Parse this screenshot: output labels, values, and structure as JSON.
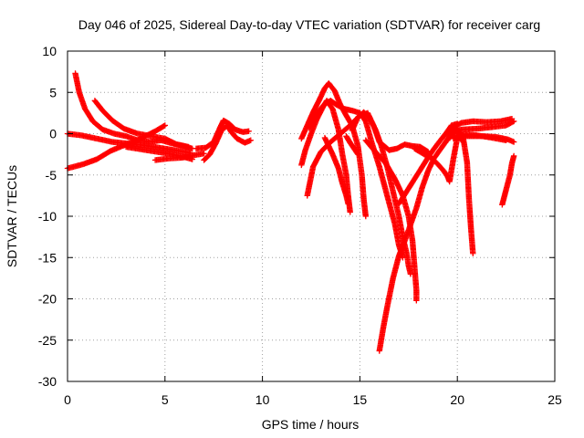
{
  "chart_data": {
    "type": "scatter",
    "title": "Day 046 of 2025, Sidereal Day-to-day VTEC variation (SDTVAR) for receiver carg",
    "xlabel": "GPS time / hours",
    "ylabel": "SDTVAR / TECUs",
    "xlim": [
      0,
      25
    ],
    "ylim": [
      -30,
      10
    ],
    "xticks": [
      "0",
      "5",
      "10",
      "15",
      "20",
      "25"
    ],
    "yticks": [
      "10",
      "5",
      "0",
      "-5",
      "-10",
      "-15",
      "-20",
      "-25",
      "-30"
    ],
    "xtick_values": [
      0,
      5,
      10,
      15,
      20,
      25
    ],
    "ytick_values": [
      10,
      5,
      0,
      -5,
      -10,
      -15,
      -20,
      -25,
      -30
    ],
    "grid": true,
    "marker": "+",
    "color": "#ff0000",
    "series": [
      {
        "name": "s1",
        "points": [
          [
            0.4,
            7.3
          ],
          [
            0.6,
            5.0
          ],
          [
            0.9,
            3.0
          ],
          [
            1.3,
            1.5
          ],
          [
            1.8,
            0.5
          ],
          [
            2.4,
            0.0
          ],
          [
            3.0,
            -0.3
          ],
          [
            3.6,
            -0.8
          ],
          [
            4.2,
            -1.0
          ],
          [
            4.8,
            -0.8
          ],
          [
            5.4,
            -1.2
          ],
          [
            6.0,
            -1.5
          ],
          [
            6.4,
            -1.8
          ]
        ]
      },
      {
        "name": "s2",
        "points": [
          [
            1.4,
            4.0
          ],
          [
            1.8,
            2.8
          ],
          [
            2.3,
            1.6
          ],
          [
            2.9,
            0.6
          ],
          [
            3.6,
            0.0
          ],
          [
            4.3,
            -0.3
          ],
          [
            5.0,
            -0.6
          ],
          [
            5.6,
            -1.3
          ],
          [
            6.2,
            -1.6
          ]
        ]
      },
      {
        "name": "s3",
        "points": [
          [
            0.0,
            0.0
          ],
          [
            0.7,
            -0.2
          ],
          [
            1.5,
            -0.6
          ],
          [
            2.3,
            -1.0
          ],
          [
            3.1,
            -1.2
          ],
          [
            3.9,
            -1.4
          ],
          [
            4.7,
            -1.7
          ],
          [
            5.5,
            -2.0
          ],
          [
            6.0,
            -2.2
          ],
          [
            6.3,
            -2.3
          ]
        ]
      },
      {
        "name": "s4",
        "points": [
          [
            0.0,
            -4.2
          ],
          [
            0.8,
            -3.7
          ],
          [
            1.5,
            -3.1
          ],
          [
            2.2,
            -2.1
          ],
          [
            2.8,
            -1.5
          ],
          [
            3.4,
            -1.0
          ],
          [
            4.0,
            -0.3
          ],
          [
            4.5,
            0.3
          ],
          [
            5.0,
            1.0
          ]
        ]
      },
      {
        "name": "s5",
        "points": [
          [
            3.0,
            -1.6
          ],
          [
            3.8,
            -1.9
          ],
          [
            4.6,
            -2.2
          ],
          [
            5.4,
            -2.5
          ],
          [
            6.1,
            -2.9
          ],
          [
            6.4,
            -3.1
          ]
        ]
      },
      {
        "name": "s6",
        "points": [
          [
            4.5,
            -3.2
          ],
          [
            5.2,
            -3.0
          ],
          [
            5.9,
            -2.9
          ],
          [
            6.5,
            -2.6
          ],
          [
            7.0,
            -2.4
          ]
        ]
      },
      {
        "name": "s7",
        "points": [
          [
            6.6,
            -1.8
          ],
          [
            7.1,
            -1.7
          ],
          [
            7.5,
            -1.0
          ],
          [
            7.8,
            0.6
          ],
          [
            8.0,
            1.6
          ],
          [
            8.3,
            1.2
          ],
          [
            8.6,
            0.5
          ],
          [
            9.0,
            0.2
          ],
          [
            9.3,
            0.3
          ]
        ]
      },
      {
        "name": "s8",
        "points": [
          [
            7.0,
            -3.2
          ],
          [
            7.3,
            -2.5
          ],
          [
            7.6,
            -1.2
          ],
          [
            7.9,
            0.4
          ],
          [
            8.2,
            1.0
          ],
          [
            8.4,
            0.2
          ],
          [
            8.7,
            -0.6
          ],
          [
            9.1,
            -1.1
          ],
          [
            9.4,
            -0.8
          ]
        ]
      },
      {
        "name": "s9",
        "points": [
          [
            12.0,
            -3.8
          ],
          [
            12.2,
            -2.0
          ],
          [
            12.5,
            0.0
          ],
          [
            12.8,
            1.8
          ],
          [
            13.1,
            3.2
          ],
          [
            13.3,
            4.0
          ],
          [
            13.6,
            3.0
          ],
          [
            13.9,
            0.5
          ],
          [
            14.1,
            -2.5
          ],
          [
            14.3,
            -5.0
          ],
          [
            14.4,
            -7.5
          ],
          [
            14.5,
            -9.5
          ]
        ]
      },
      {
        "name": "s10",
        "points": [
          [
            12.0,
            -0.6
          ],
          [
            12.3,
            1.0
          ],
          [
            12.6,
            2.6
          ],
          [
            12.9,
            4.0
          ],
          [
            13.2,
            5.5
          ],
          [
            13.4,
            6.1
          ],
          [
            13.7,
            5.2
          ],
          [
            14.0,
            3.5
          ],
          [
            14.3,
            2.2
          ],
          [
            14.6,
            1.0
          ],
          [
            14.9,
            -1.5
          ],
          [
            15.1,
            -5.0
          ],
          [
            15.2,
            -8.0
          ],
          [
            15.3,
            -10.0
          ]
        ]
      },
      {
        "name": "s11",
        "points": [
          [
            12.3,
            -7.5
          ],
          [
            12.6,
            -4.0
          ],
          [
            13.0,
            -2.2
          ],
          [
            13.5,
            -1.0
          ],
          [
            14.0,
            0.0
          ],
          [
            14.5,
            1.0
          ],
          [
            15.0,
            2.2
          ],
          [
            15.4,
            2.5
          ],
          [
            15.7,
            1.0
          ],
          [
            16.0,
            -1.0
          ],
          [
            16.5,
            -2.0
          ],
          [
            16.9,
            -1.8
          ],
          [
            17.3,
            -1.3
          ],
          [
            17.7,
            -1.5
          ],
          [
            18.1,
            -1.6
          ],
          [
            18.5,
            -2.2
          ]
        ]
      },
      {
        "name": "s12",
        "points": [
          [
            12.4,
            0.7
          ],
          [
            12.8,
            2.5
          ],
          [
            13.2,
            3.6
          ],
          [
            13.5,
            4.0
          ],
          [
            13.8,
            3.5
          ],
          [
            14.2,
            3.0
          ],
          [
            14.6,
            2.8
          ],
          [
            15.0,
            2.5
          ],
          [
            15.3,
            1.5
          ],
          [
            15.6,
            -1.0
          ],
          [
            16.0,
            -4.0
          ],
          [
            16.4,
            -7.5
          ],
          [
            16.8,
            -11.0
          ],
          [
            17.0,
            -13.5
          ],
          [
            17.2,
            -15.0
          ]
        ]
      },
      {
        "name": "s13",
        "points": [
          [
            13.2,
            -0.5
          ],
          [
            13.6,
            -2.5
          ],
          [
            13.9,
            -4.2
          ],
          [
            14.1,
            -6.0
          ],
          [
            14.3,
            -7.5
          ],
          [
            14.4,
            -8.5
          ]
        ]
      },
      {
        "name": "s14",
        "points": [
          [
            14.3,
            -0.3
          ],
          [
            14.5,
            -1.1
          ],
          [
            14.7,
            -1.8
          ],
          [
            14.9,
            -2.5
          ]
        ]
      },
      {
        "name": "s15",
        "points": [
          [
            14.6,
            0.4
          ],
          [
            14.9,
            2.0
          ],
          [
            15.2,
            2.6
          ],
          [
            15.5,
            1.8
          ],
          [
            15.8,
            0.5
          ],
          [
            16.1,
            -1.5
          ],
          [
            16.4,
            -4.0
          ],
          [
            16.7,
            -7.0
          ],
          [
            17.0,
            -10.0
          ],
          [
            17.2,
            -12.5
          ],
          [
            17.4,
            -14.5
          ],
          [
            17.5,
            -16.0
          ],
          [
            17.6,
            -17.0
          ]
        ]
      },
      {
        "name": "s16",
        "points": [
          [
            15.3,
            -0.8
          ],
          [
            15.8,
            -2.2
          ],
          [
            16.3,
            -3.5
          ],
          [
            16.8,
            -5.5
          ],
          [
            17.2,
            -7.5
          ],
          [
            17.5,
            -10.0
          ],
          [
            17.7,
            -13.0
          ],
          [
            17.8,
            -16.0
          ],
          [
            17.9,
            -19.0
          ],
          [
            17.9,
            -20.2
          ]
        ]
      },
      {
        "name": "s17",
        "points": [
          [
            16.0,
            -26.3
          ],
          [
            16.2,
            -23.5
          ],
          [
            16.4,
            -21.0
          ],
          [
            16.7,
            -17.5
          ],
          [
            17.0,
            -14.8
          ],
          [
            17.3,
            -13.0
          ],
          [
            17.6,
            -11.0
          ],
          [
            17.9,
            -9.0
          ],
          [
            18.2,
            -6.5
          ],
          [
            18.5,
            -4.5
          ],
          [
            18.8,
            -3.0
          ],
          [
            19.1,
            -2.0
          ],
          [
            19.4,
            -1.0
          ],
          [
            19.7,
            0.0
          ],
          [
            20.0,
            0.5
          ],
          [
            20.3,
            -1.0
          ]
        ]
      },
      {
        "name": "s18",
        "points": [
          [
            17.0,
            -8.5
          ],
          [
            17.4,
            -7.0
          ],
          [
            17.8,
            -5.5
          ],
          [
            18.2,
            -4.0
          ],
          [
            18.6,
            -2.5
          ],
          [
            19.0,
            -1.2
          ],
          [
            19.4,
            0.0
          ],
          [
            19.7,
            1.0
          ],
          [
            20.0,
            1.2
          ]
        ]
      },
      {
        "name": "s19",
        "points": [
          [
            17.8,
            -1.8
          ],
          [
            18.3,
            -2.5
          ],
          [
            18.7,
            -3.0
          ],
          [
            19.0,
            -3.7
          ],
          [
            19.3,
            -4.5
          ],
          [
            19.5,
            -5.2
          ],
          [
            19.6,
            -5.8
          ],
          [
            19.8,
            -3.0
          ],
          [
            20.0,
            -0.5
          ],
          [
            20.3,
            -0.5
          ],
          [
            20.5,
            -3.5
          ],
          [
            20.6,
            -8.0
          ],
          [
            20.7,
            -11.5
          ],
          [
            20.8,
            -14.5
          ]
        ]
      },
      {
        "name": "s20",
        "points": [
          [
            19.5,
            -0.8
          ],
          [
            19.8,
            0.8
          ],
          [
            20.2,
            1.3
          ],
          [
            20.8,
            1.5
          ],
          [
            21.5,
            1.4
          ],
          [
            22.2,
            1.5
          ],
          [
            22.8,
            1.8
          ]
        ]
      },
      {
        "name": "s21",
        "points": [
          [
            19.6,
            0.1
          ],
          [
            20.2,
            0.5
          ],
          [
            21.0,
            0.6
          ],
          [
            21.8,
            0.8
          ],
          [
            22.5,
            1.0
          ],
          [
            22.9,
            1.5
          ]
        ]
      },
      {
        "name": "s22",
        "points": [
          [
            19.7,
            -0.2
          ],
          [
            20.5,
            -0.3
          ],
          [
            21.3,
            -0.3
          ],
          [
            22.0,
            -0.4
          ],
          [
            22.6,
            -0.7
          ],
          [
            22.9,
            -1.0
          ]
        ]
      },
      {
        "name": "s23",
        "points": [
          [
            19.8,
            -0.6
          ],
          [
            20.3,
            -0.1
          ],
          [
            21.0,
            -0.2
          ],
          [
            21.8,
            -0.5
          ],
          [
            22.5,
            -0.8
          ]
        ]
      },
      {
        "name": "s24",
        "points": [
          [
            22.3,
            -8.6
          ],
          [
            22.5,
            -6.8
          ],
          [
            22.7,
            -5.0
          ],
          [
            22.8,
            -3.6
          ],
          [
            22.9,
            -2.7
          ]
        ]
      }
    ]
  }
}
